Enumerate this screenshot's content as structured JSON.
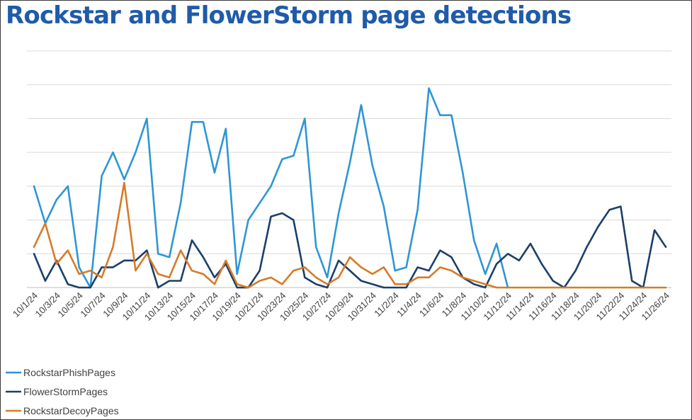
{
  "chart_data": {
    "type": "line",
    "title": "Rockstar and FlowerStorm page detections",
    "xlabel": "",
    "ylabel": "",
    "ylim": [
      0,
      70
    ],
    "grid": true,
    "legend_position": "bottom-left",
    "x_ticks": [
      "10/1/24",
      "10/3/24",
      "10/5/24",
      "10/7/24",
      "10/9/24",
      "10/11/24",
      "10/13/24",
      "10/15/24",
      "10/17/24",
      "10/19/24",
      "10/21/24",
      "10/23/24",
      "10/25/24",
      "10/27/24",
      "10/29/24",
      "10/31/24",
      "11/2/24",
      "11/4/24",
      "11/6/24",
      "11/8/24",
      "11/10/24",
      "11/12/24",
      "11/14/24",
      "11/16/24",
      "11/18/24",
      "11/20/24",
      "11/22/24",
      "11/24/24",
      "11/26/24"
    ],
    "series": [
      {
        "name": "RockstarPhishPages",
        "color": "#2e96d4",
        "values": [
          30,
          19,
          26,
          30,
          6,
          0,
          33,
          40,
          32,
          40,
          50,
          10,
          9,
          25,
          49,
          49,
          34,
          47,
          4,
          20,
          25,
          30,
          38,
          39,
          50,
          12,
          3,
          22,
          37,
          54,
          36,
          24,
          5,
          6,
          23,
          59,
          51,
          51,
          34,
          14,
          4,
          13,
          0
        ]
      },
      {
        "name": "FlowerStormPages",
        "color": "#1b3f6b",
        "values": [
          10,
          2,
          8,
          1,
          0,
          0,
          6,
          6,
          8,
          8,
          11,
          0,
          2,
          2,
          14,
          9,
          3,
          7,
          0,
          0,
          5,
          21,
          22,
          20,
          3,
          1,
          0,
          8,
          5,
          2,
          1,
          0,
          0,
          0,
          6,
          5,
          11,
          9,
          3,
          1,
          0,
          7,
          10,
          8,
          13,
          7,
          2,
          0,
          5,
          12,
          18,
          23,
          24,
          2,
          0,
          17,
          12
        ]
      },
      {
        "name": "RockstarDecoyPages",
        "color": "#d67b27",
        "values": [
          12,
          19,
          7,
          11,
          4,
          5,
          3,
          12,
          31,
          5,
          10,
          4,
          3,
          11,
          5,
          4,
          1,
          8,
          1,
          0,
          2,
          3,
          1,
          5,
          6,
          3,
          1,
          3,
          9,
          6,
          4,
          6,
          1,
          1,
          3,
          3,
          6,
          5,
          3,
          2,
          1,
          0,
          0,
          0,
          0,
          0,
          0,
          0,
          0,
          0,
          0,
          0,
          0,
          0,
          0,
          0,
          0
        ]
      }
    ]
  }
}
